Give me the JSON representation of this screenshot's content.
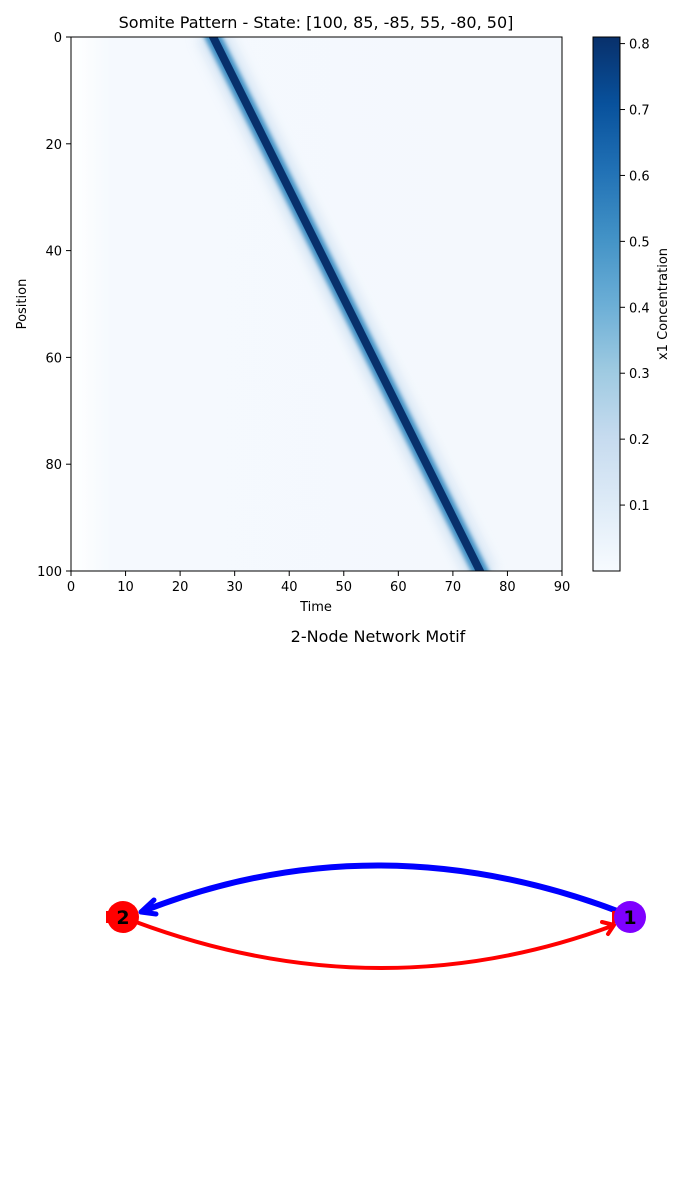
{
  "chart_data": [
    {
      "type": "heatmap",
      "title": "Somite Pattern - State: [100, 85, -85, 55, -80, 50]",
      "xlabel": "Time",
      "ylabel": "Position",
      "xlim": [
        0,
        90
      ],
      "ylim": [
        100,
        0
      ],
      "xticks": [
        "0",
        "10",
        "20",
        "30",
        "40",
        "50",
        "60",
        "70",
        "80",
        "90"
      ],
      "yticks": [
        "0",
        "20",
        "40",
        "60",
        "80",
        "100"
      ],
      "colormap": "Blues",
      "band": {
        "description_values": {
          "start_position": 0,
          "start_time": 25.5,
          "end_position": 100,
          "end_time": 75.5
        },
        "peak_value": 0.81,
        "background_value": 0.01
      },
      "colorbar": {
        "label": "x1 Concentration",
        "range": [
          0.0,
          0.81
        ],
        "ticks": [
          "0.1",
          "0.2",
          "0.3",
          "0.4",
          "0.5",
          "0.6",
          "0.7",
          "0.8"
        ]
      }
    },
    {
      "type": "network",
      "title": "2-Node Network Motif",
      "nodes": [
        {
          "id": "1",
          "label": "1",
          "color": "#7f00ff"
        },
        {
          "id": "2",
          "label": "2",
          "color": "#ff0000"
        }
      ],
      "edges": [
        {
          "from": "1",
          "to": "2",
          "color": "#0000ff",
          "kind": "activation-arrow"
        },
        {
          "from": "2",
          "to": "1",
          "color": "#ff0000",
          "kind": "activation-arrow"
        }
      ]
    }
  ]
}
